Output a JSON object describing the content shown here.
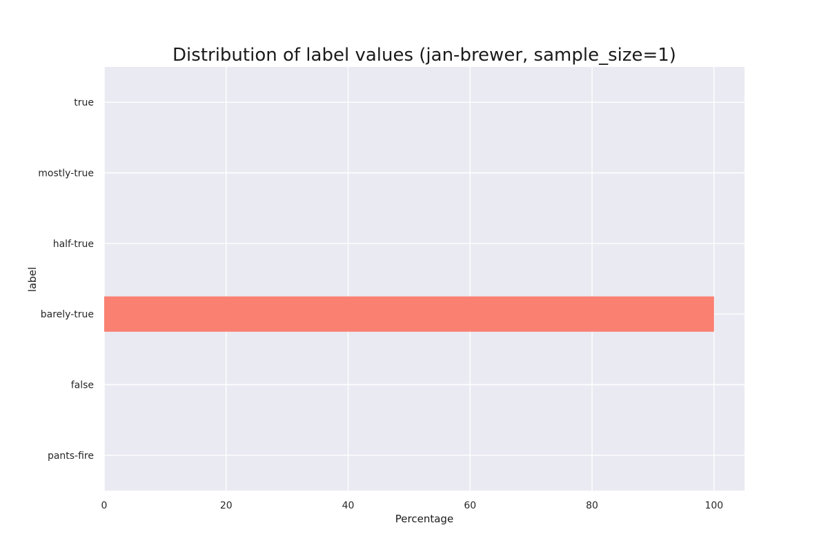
{
  "chart_data": {
    "type": "bar",
    "orientation": "horizontal",
    "title": "Distribution of label values (jan-brewer, sample_size=1)",
    "xlabel": "Percentage",
    "ylabel": "label",
    "categories": [
      "pants-fire",
      "false",
      "barely-true",
      "half-true",
      "mostly-true",
      "true"
    ],
    "values": [
      0,
      0,
      100,
      0,
      0,
      0
    ],
    "xlim": [
      0,
      105
    ],
    "xticks": [
      0,
      20,
      40,
      60,
      80,
      100
    ],
    "grid": true,
    "legend": "none",
    "colors": {
      "bar": "#fa8072",
      "plot_background": "#eaeaf2",
      "grid": "#ffffff",
      "text": "#262626"
    }
  }
}
